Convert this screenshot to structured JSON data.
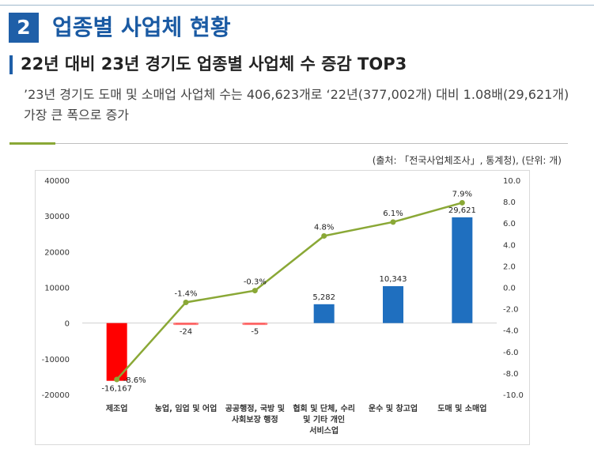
{
  "section": {
    "number": "2",
    "title": "업종별 사업체 현황"
  },
  "subtitle": "22년 대비 23년 경기도 업종별 사업체 수 증감 TOP3",
  "description": "’23년 경기도 도매 및 소매업 사업체 수는 406,623개로 ‘22년(377,002개) 대비 1.08배(29,621개) 가장 큰 폭으로 증가",
  "source": "(출처: 「전국사업체조사」, 통계청), (단위: 개)",
  "colors": {
    "accent_blue": "#1f5fa8",
    "bar_blue": "#1f6fbf",
    "bar_red": "#ff0000",
    "line_green": "#8aa836",
    "rule_green": "#8aa836"
  },
  "chart_data": {
    "type": "bar",
    "categories": [
      [
        "제조업"
      ],
      [
        "농업, 임업 및 어업"
      ],
      [
        "공공행정, 국방 및",
        "사회보장 행정"
      ],
      [
        "협회 및 단체, 수리",
        "및 기타 개인",
        "서비스업"
      ],
      [
        "운수 및 창고업"
      ],
      [
        "도매 및 소매업"
      ]
    ],
    "series": [
      {
        "axis": "left",
        "type": "bar",
        "values": [
          -16167,
          -24,
          -5,
          5282,
          10343,
          29621
        ],
        "labels": [
          "-16,167",
          "-24",
          "-5",
          "5,282",
          "10,343",
          "29,621"
        ],
        "colors": [
          "#ff0000",
          "#ff0000",
          "#ff0000",
          "#1f6fbf",
          "#1f6fbf",
          "#1f6fbf"
        ]
      },
      {
        "axis": "right",
        "type": "line",
        "values": [
          -8.6,
          -1.4,
          -0.3,
          4.8,
          6.1,
          7.9
        ],
        "labels": [
          "-8.6%",
          "-1.4%",
          "-0.3%",
          "4.8%",
          "6.1%",
          "7.9%"
        ],
        "color": "#8aa836"
      }
    ],
    "y_left": {
      "min": -20000,
      "max": 40000,
      "ticks": [
        40000,
        30000,
        20000,
        10000,
        0,
        -10000,
        -20000
      ],
      "tick_labels": [
        "40000",
        "30000",
        "20000",
        "10000",
        "0",
        "-10000",
        "-20000"
      ]
    },
    "y_right": {
      "min": -10,
      "max": 10,
      "ticks": [
        10,
        8,
        6,
        4,
        2,
        0,
        -2,
        -4,
        -6,
        -8,
        -10
      ],
      "tick_labels": [
        "10.0",
        "8.0",
        "6.0",
        "4.0",
        "2.0",
        "0.0",
        "-2.0",
        "-4.0",
        "-6.0",
        "-8.0",
        "-10.0"
      ]
    },
    "grid": false,
    "legend": "none"
  }
}
